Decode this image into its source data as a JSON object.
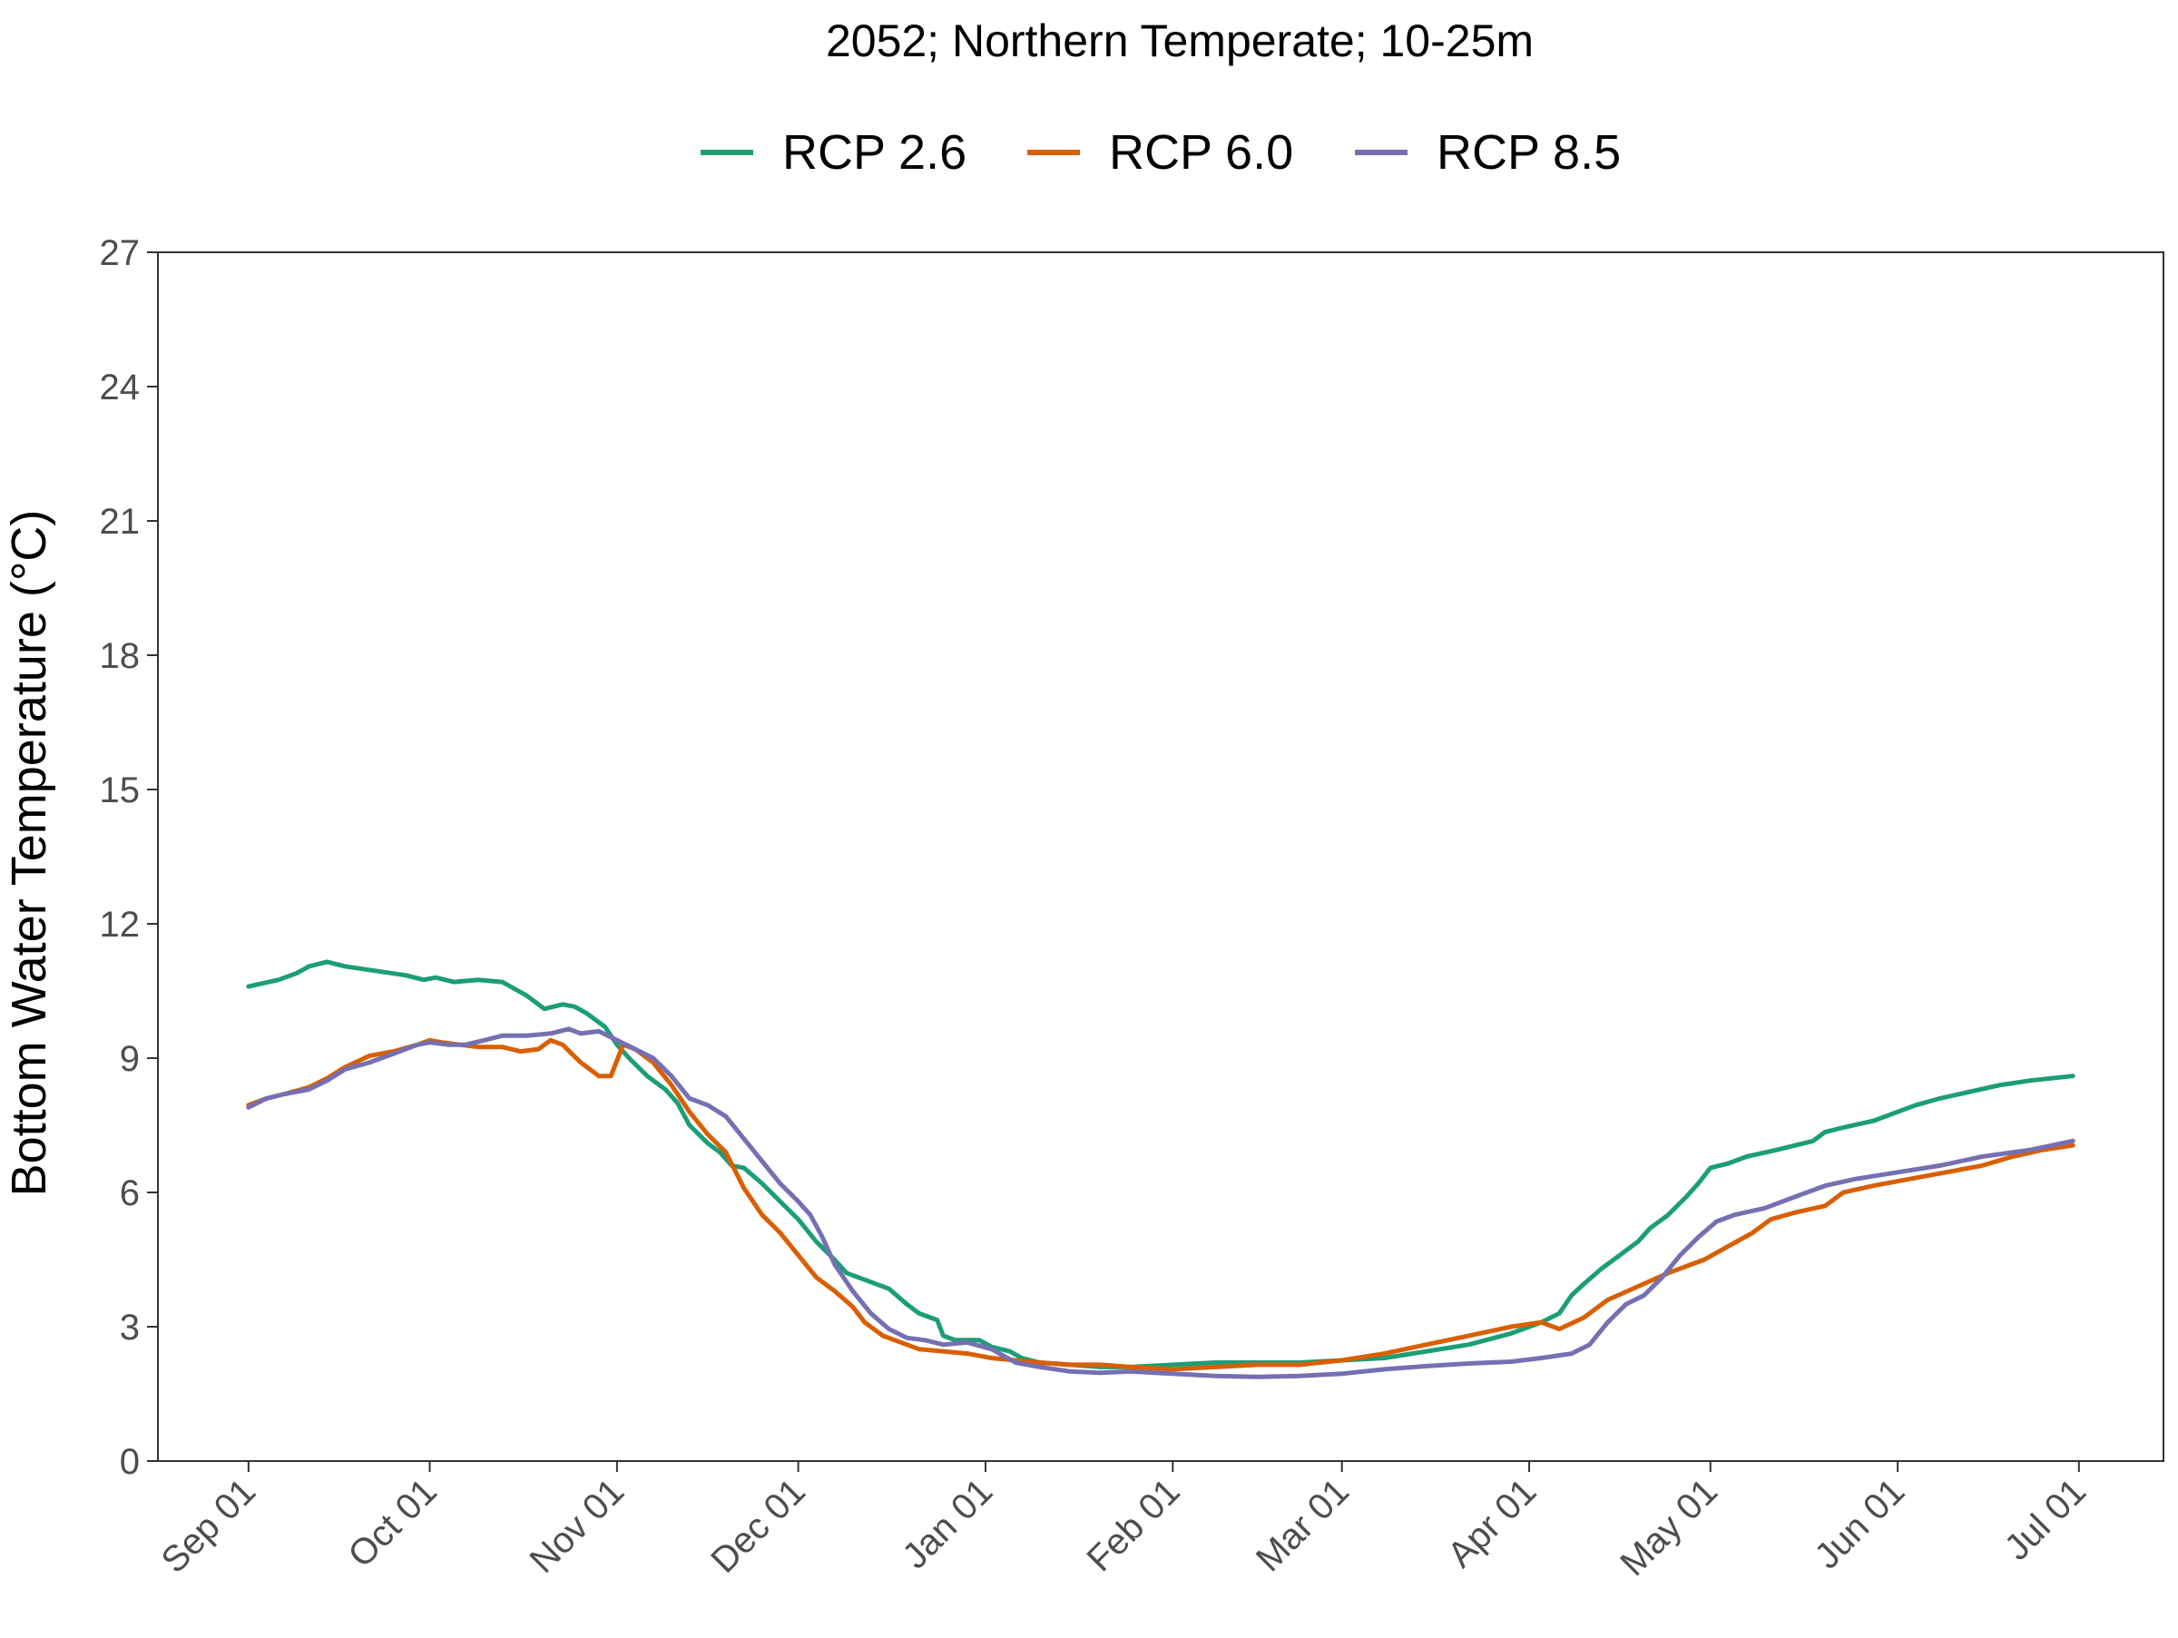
{
  "chart_data": {
    "type": "line",
    "title": "2052;  Northern Temperate;  10-25m",
    "xlabel": "",
    "ylabel": "Bottom Water Temperature (°C)",
    "ylim": [
      0,
      27
    ],
    "y_ticks": [
      0,
      3,
      6,
      9,
      12,
      15,
      18,
      21,
      24,
      27
    ],
    "x_ticks": [
      {
        "label": "Sep 01",
        "date": "2052-09-01"
      },
      {
        "label": "Oct 01",
        "date": "2052-10-01"
      },
      {
        "label": "Nov 01",
        "date": "2052-11-01"
      },
      {
        "label": "Dec 01",
        "date": "2052-12-01"
      },
      {
        "label": "Jan 01",
        "date": "2053-01-01"
      },
      {
        "label": "Feb 01",
        "date": "2053-02-01"
      },
      {
        "label": "Mar 01",
        "date": "2053-03-01"
      },
      {
        "label": "Apr 01",
        "date": "2053-04-01"
      },
      {
        "label": "May 01",
        "date": "2053-05-01"
      },
      {
        "label": "Jun 01",
        "date": "2053-06-01"
      },
      {
        "label": "Jul 01",
        "date": "2053-07-01"
      }
    ],
    "xlim": [
      "2052-08-17",
      "2053-07-15"
    ],
    "grid": false,
    "legend_position": "top",
    "series": [
      {
        "name": "RCP 2.6",
        "color": "#1b9e77",
        "points": [
          [
            "2052-09-01",
            10.6
          ],
          [
            "2052-09-06",
            10.75
          ],
          [
            "2052-09-09",
            10.9
          ],
          [
            "2052-09-11",
            11.05
          ],
          [
            "2052-09-14",
            11.15
          ],
          [
            "2052-09-17",
            11.05
          ],
          [
            "2052-09-22",
            10.95
          ],
          [
            "2052-09-27",
            10.85
          ],
          [
            "2052-09-30",
            10.75
          ],
          [
            "2052-10-02",
            10.8
          ],
          [
            "2052-10-05",
            10.7
          ],
          [
            "2052-10-09",
            10.75
          ],
          [
            "2052-10-13",
            10.7
          ],
          [
            "2052-10-15",
            10.55
          ],
          [
            "2052-10-17",
            10.4
          ],
          [
            "2052-10-20",
            10.1
          ],
          [
            "2052-10-23",
            10.2
          ],
          [
            "2052-10-25",
            10.15
          ],
          [
            "2052-10-27",
            10.0
          ],
          [
            "2052-10-30",
            9.7
          ],
          [
            "2052-11-01",
            9.3
          ],
          [
            "2052-11-03",
            9.0
          ],
          [
            "2052-11-06",
            8.6
          ],
          [
            "2052-11-09",
            8.3
          ],
          [
            "2052-11-11",
            8.0
          ],
          [
            "2052-11-13",
            7.5
          ],
          [
            "2052-11-16",
            7.1
          ],
          [
            "2052-11-18",
            6.9
          ],
          [
            "2052-11-20",
            6.6
          ],
          [
            "2052-11-22",
            6.55
          ],
          [
            "2052-11-25",
            6.2
          ],
          [
            "2052-11-28",
            5.8
          ],
          [
            "2052-12-01",
            5.4
          ],
          [
            "2052-12-04",
            4.9
          ],
          [
            "2052-12-07",
            4.5
          ],
          [
            "2052-12-09",
            4.2
          ],
          [
            "2052-12-13",
            4.0
          ],
          [
            "2052-12-16",
            3.85
          ],
          [
            "2052-12-19",
            3.5
          ],
          [
            "2052-12-21",
            3.3
          ],
          [
            "2052-12-24",
            3.15
          ],
          [
            "2052-12-25",
            2.8
          ],
          [
            "2052-12-27",
            2.7
          ],
          [
            "2052-12-31",
            2.7
          ],
          [
            "2053-01-02",
            2.55
          ],
          [
            "2053-01-05",
            2.45
          ],
          [
            "2053-01-07",
            2.3
          ],
          [
            "2053-01-10",
            2.2
          ],
          [
            "2053-01-15",
            2.15
          ],
          [
            "2053-01-20",
            2.1
          ],
          [
            "2053-01-25",
            2.1
          ],
          [
            "2053-02-01",
            2.15
          ],
          [
            "2053-02-08",
            2.2
          ],
          [
            "2053-02-15",
            2.2
          ],
          [
            "2053-02-22",
            2.2
          ],
          [
            "2053-03-01",
            2.25
          ],
          [
            "2053-03-08",
            2.3
          ],
          [
            "2053-03-15",
            2.45
          ],
          [
            "2053-03-22",
            2.6
          ],
          [
            "2053-03-29",
            2.85
          ],
          [
            "2053-04-03",
            3.1
          ],
          [
            "2053-04-06",
            3.3
          ],
          [
            "2053-04-08",
            3.7
          ],
          [
            "2053-04-10",
            3.95
          ],
          [
            "2053-04-13",
            4.3
          ],
          [
            "2053-04-16",
            4.6
          ],
          [
            "2053-04-19",
            4.9
          ],
          [
            "2053-04-21",
            5.2
          ],
          [
            "2053-04-24",
            5.5
          ],
          [
            "2053-04-27",
            5.9
          ],
          [
            "2053-04-29",
            6.2
          ],
          [
            "2053-05-01",
            6.55
          ],
          [
            "2053-05-04",
            6.65
          ],
          [
            "2053-05-07",
            6.8
          ],
          [
            "2053-05-12",
            6.95
          ],
          [
            "2053-05-18",
            7.15
          ],
          [
            "2053-05-20",
            7.35
          ],
          [
            "2053-05-23",
            7.45
          ],
          [
            "2053-05-28",
            7.6
          ],
          [
            "2053-06-01",
            7.8
          ],
          [
            "2053-06-04",
            7.95
          ],
          [
            "2053-06-08",
            8.1
          ],
          [
            "2053-06-13",
            8.25
          ],
          [
            "2053-06-18",
            8.4
          ],
          [
            "2053-06-23",
            8.5
          ],
          [
            "2053-06-30",
            8.6
          ]
        ]
      },
      {
        "name": "RCP 6.0",
        "color": "#d95f02",
        "points": [
          [
            "2052-09-01",
            7.95
          ],
          [
            "2052-09-04",
            8.1
          ],
          [
            "2052-09-07",
            8.2
          ],
          [
            "2052-09-11",
            8.35
          ],
          [
            "2052-09-14",
            8.55
          ],
          [
            "2052-09-17",
            8.8
          ],
          [
            "2052-09-21",
            9.05
          ],
          [
            "2052-09-25",
            9.15
          ],
          [
            "2052-09-29",
            9.3
          ],
          [
            "2052-10-01",
            9.4
          ],
          [
            "2052-10-03",
            9.35
          ],
          [
            "2052-10-06",
            9.3
          ],
          [
            "2052-10-09",
            9.25
          ],
          [
            "2052-10-13",
            9.25
          ],
          [
            "2052-10-16",
            9.15
          ],
          [
            "2052-10-19",
            9.2
          ],
          [
            "2052-10-21",
            9.4
          ],
          [
            "2052-10-23",
            9.3
          ],
          [
            "2052-10-26",
            8.9
          ],
          [
            "2052-10-29",
            8.6
          ],
          [
            "2052-10-31",
            8.6
          ],
          [
            "2052-11-02",
            9.3
          ],
          [
            "2052-11-04",
            9.2
          ],
          [
            "2052-11-07",
            8.9
          ],
          [
            "2052-11-10",
            8.4
          ],
          [
            "2052-11-13",
            7.8
          ],
          [
            "2052-11-16",
            7.3
          ],
          [
            "2052-11-19",
            6.9
          ],
          [
            "2052-11-22",
            6.1
          ],
          [
            "2052-11-25",
            5.5
          ],
          [
            "2052-11-28",
            5.1
          ],
          [
            "2052-12-01",
            4.6
          ],
          [
            "2052-12-04",
            4.1
          ],
          [
            "2052-12-07",
            3.8
          ],
          [
            "2052-12-10",
            3.45
          ],
          [
            "2052-12-12",
            3.1
          ],
          [
            "2052-12-15",
            2.8
          ],
          [
            "2052-12-18",
            2.65
          ],
          [
            "2052-12-21",
            2.5
          ],
          [
            "2052-12-25",
            2.45
          ],
          [
            "2052-12-29",
            2.4
          ],
          [
            "2053-01-02",
            2.3
          ],
          [
            "2053-01-06",
            2.25
          ],
          [
            "2053-01-10",
            2.2
          ],
          [
            "2053-01-15",
            2.15
          ],
          [
            "2053-01-20",
            2.15
          ],
          [
            "2053-01-25",
            2.1
          ],
          [
            "2053-02-01",
            2.05
          ],
          [
            "2053-02-08",
            2.1
          ],
          [
            "2053-02-15",
            2.15
          ],
          [
            "2053-02-22",
            2.15
          ],
          [
            "2053-03-01",
            2.25
          ],
          [
            "2053-03-08",
            2.4
          ],
          [
            "2053-03-15",
            2.6
          ],
          [
            "2053-03-22",
            2.8
          ],
          [
            "2053-03-29",
            3.0
          ],
          [
            "2053-04-03",
            3.1
          ],
          [
            "2053-04-06",
            2.95
          ],
          [
            "2053-04-10",
            3.2
          ],
          [
            "2053-04-14",
            3.6
          ],
          [
            "2053-04-19",
            3.9
          ],
          [
            "2053-04-24",
            4.2
          ],
          [
            "2053-04-30",
            4.5
          ],
          [
            "2053-05-04",
            4.8
          ],
          [
            "2053-05-08",
            5.1
          ],
          [
            "2053-05-11",
            5.4
          ],
          [
            "2053-05-15",
            5.55
          ],
          [
            "2053-05-20",
            5.7
          ],
          [
            "2053-05-23",
            6.0
          ],
          [
            "2053-05-28",
            6.15
          ],
          [
            "2053-06-03",
            6.3
          ],
          [
            "2053-06-09",
            6.45
          ],
          [
            "2053-06-15",
            6.6
          ],
          [
            "2053-06-20",
            6.8
          ],
          [
            "2053-06-25",
            6.95
          ],
          [
            "2053-06-30",
            7.05
          ]
        ]
      },
      {
        "name": "RCP 8.5",
        "color": "#7570b3",
        "points": [
          [
            "2052-09-01",
            7.9
          ],
          [
            "2052-09-04",
            8.1
          ],
          [
            "2052-09-07",
            8.2
          ],
          [
            "2052-09-11",
            8.3
          ],
          [
            "2052-09-14",
            8.5
          ],
          [
            "2052-09-17",
            8.75
          ],
          [
            "2052-09-21",
            8.9
          ],
          [
            "2052-09-25",
            9.1
          ],
          [
            "2052-09-29",
            9.3
          ],
          [
            "2052-10-01",
            9.35
          ],
          [
            "2052-10-04",
            9.3
          ],
          [
            "2052-10-07",
            9.3
          ],
          [
            "2052-10-10",
            9.4
          ],
          [
            "2052-10-13",
            9.5
          ],
          [
            "2052-10-17",
            9.5
          ],
          [
            "2052-10-21",
            9.55
          ],
          [
            "2052-10-24",
            9.65
          ],
          [
            "2052-10-26",
            9.55
          ],
          [
            "2052-10-29",
            9.6
          ],
          [
            "2052-11-01",
            9.4
          ],
          [
            "2052-11-04",
            9.2
          ],
          [
            "2052-11-07",
            9.0
          ],
          [
            "2052-11-10",
            8.6
          ],
          [
            "2052-11-13",
            8.1
          ],
          [
            "2052-11-16",
            7.95
          ],
          [
            "2052-11-19",
            7.7
          ],
          [
            "2052-11-22",
            7.2
          ],
          [
            "2052-11-25",
            6.7
          ],
          [
            "2052-11-28",
            6.2
          ],
          [
            "2052-12-01",
            5.8
          ],
          [
            "2052-12-03",
            5.5
          ],
          [
            "2052-12-05",
            5.0
          ],
          [
            "2052-12-07",
            4.4
          ],
          [
            "2052-12-10",
            3.8
          ],
          [
            "2052-12-13",
            3.3
          ],
          [
            "2052-12-16",
            2.95
          ],
          [
            "2052-12-19",
            2.75
          ],
          [
            "2052-12-22",
            2.7
          ],
          [
            "2052-12-25",
            2.6
          ],
          [
            "2052-12-29",
            2.65
          ],
          [
            "2053-01-02",
            2.5
          ],
          [
            "2053-01-06",
            2.2
          ],
          [
            "2053-01-10",
            2.1
          ],
          [
            "2053-01-15",
            2.0
          ],
          [
            "2053-01-20",
            1.97
          ],
          [
            "2053-01-25",
            2.0
          ],
          [
            "2053-02-01",
            1.95
          ],
          [
            "2053-02-08",
            1.9
          ],
          [
            "2053-02-15",
            1.88
          ],
          [
            "2053-02-22",
            1.9
          ],
          [
            "2053-03-01",
            1.95
          ],
          [
            "2053-03-08",
            2.05
          ],
          [
            "2053-03-15",
            2.12
          ],
          [
            "2053-03-22",
            2.18
          ],
          [
            "2053-03-29",
            2.22
          ],
          [
            "2053-04-03",
            2.3
          ],
          [
            "2053-04-08",
            2.4
          ],
          [
            "2053-04-11",
            2.6
          ],
          [
            "2053-04-14",
            3.1
          ],
          [
            "2053-04-17",
            3.5
          ],
          [
            "2053-04-20",
            3.7
          ],
          [
            "2053-04-23",
            4.1
          ],
          [
            "2053-04-26",
            4.6
          ],
          [
            "2053-04-29",
            5.0
          ],
          [
            "2053-05-02",
            5.35
          ],
          [
            "2053-05-05",
            5.5
          ],
          [
            "2053-05-10",
            5.65
          ],
          [
            "2053-05-15",
            5.9
          ],
          [
            "2053-05-20",
            6.15
          ],
          [
            "2053-05-25",
            6.3
          ],
          [
            "2053-06-01",
            6.45
          ],
          [
            "2053-06-08",
            6.6
          ],
          [
            "2053-06-15",
            6.8
          ],
          [
            "2053-06-23",
            6.95
          ],
          [
            "2053-06-30",
            7.15
          ]
        ]
      }
    ]
  }
}
